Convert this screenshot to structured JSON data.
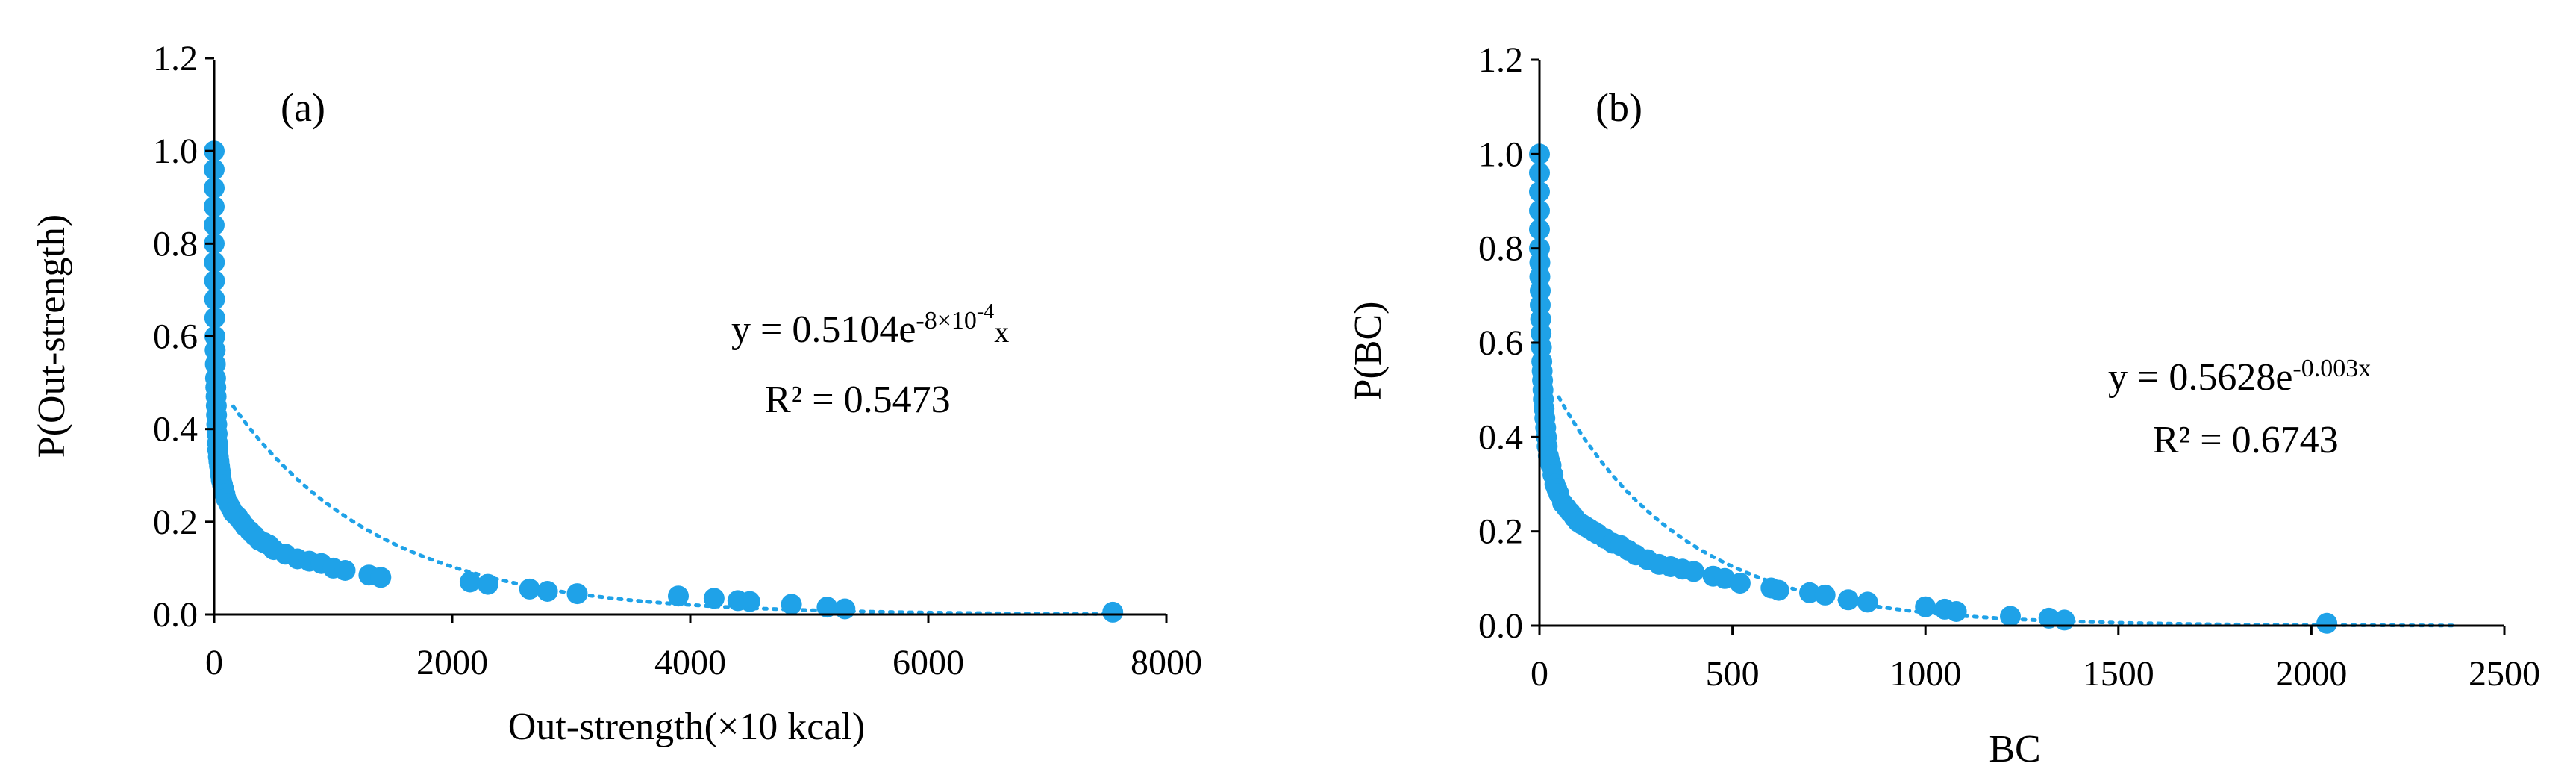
{
  "chart_data": [
    {
      "type": "scatter",
      "panel_label": "(a)",
      "xlabel": "Out-strength(×10 kcal)",
      "ylabel": "P(Out-strength)",
      "xlim": [
        0,
        8000
      ],
      "ylim": [
        0,
        1.2
      ],
      "x_ticks": [
        0,
        2000,
        4000,
        6000,
        8000
      ],
      "y_ticks": [
        0.0,
        0.2,
        0.4,
        0.6,
        0.8,
        1.0,
        1.2
      ],
      "grid": false,
      "point_color": "#1FA2E8",
      "trendline": {
        "type": "exponential",
        "a": 0.5104,
        "b": -0.0008,
        "style": "dotted"
      },
      "equation": {
        "prefix": "y = 0.5104e",
        "exponent": "-8×10",
        "exp_power": "-4",
        "suffix": "x"
      },
      "r2": "R² = 0.5473",
      "points": {
        "x": [
          0,
          0,
          0,
          0,
          0,
          0,
          2,
          3,
          4,
          5,
          6,
          8,
          10,
          12,
          14,
          16,
          18,
          20,
          22,
          25,
          28,
          30,
          35,
          40,
          45,
          50,
          55,
          60,
          70,
          80,
          90,
          100,
          120,
          140,
          160,
          180,
          200,
          230,
          260,
          300,
          340,
          380,
          420,
          460,
          500,
          600,
          700,
          800,
          900,
          1000,
          1100,
          1300,
          1400,
          2150,
          2300,
          2650,
          2800,
          3050,
          3900,
          4200,
          4400,
          4500,
          4850,
          5150,
          5300,
          7550
        ],
        "y": [
          1.0,
          0.96,
          0.92,
          0.88,
          0.84,
          0.8,
          0.76,
          0.72,
          0.68,
          0.64,
          0.6,
          0.57,
          0.54,
          0.51,
          0.49,
          0.47,
          0.45,
          0.43,
          0.41,
          0.39,
          0.37,
          0.355,
          0.34,
          0.33,
          0.32,
          0.31,
          0.3,
          0.29,
          0.28,
          0.27,
          0.26,
          0.25,
          0.24,
          0.23,
          0.22,
          0.215,
          0.21,
          0.2,
          0.19,
          0.18,
          0.17,
          0.16,
          0.155,
          0.15,
          0.14,
          0.13,
          0.12,
          0.115,
          0.11,
          0.1,
          0.095,
          0.085,
          0.08,
          0.07,
          0.065,
          0.055,
          0.05,
          0.045,
          0.04,
          0.035,
          0.03,
          0.028,
          0.022,
          0.016,
          0.012,
          0.005
        ]
      }
    },
    {
      "type": "scatter",
      "panel_label": "(b)",
      "xlabel": "BC",
      "ylabel": "P(BC)",
      "xlim": [
        0,
        2500
      ],
      "ylim": [
        0,
        1.2
      ],
      "x_ticks": [
        0,
        500,
        1000,
        1500,
        2000,
        2500
      ],
      "y_ticks": [
        0.0,
        0.2,
        0.4,
        0.6,
        0.8,
        1.0,
        1.2
      ],
      "grid": false,
      "point_color": "#1FA2E8",
      "trendline": {
        "type": "exponential",
        "a": 0.5628,
        "b": -0.003,
        "style": "dotted"
      },
      "equation": {
        "prefix": "y = 0.5628e",
        "exponent": "-0.003x",
        "exp_power": "",
        "suffix": ""
      },
      "r2": "R² = 0.6743",
      "points": {
        "x": [
          0,
          0,
          0,
          0,
          0,
          0,
          1,
          1,
          2,
          2,
          3,
          4,
          5,
          6,
          7,
          8,
          9,
          10,
          12,
          14,
          16,
          18,
          20,
          23,
          26,
          30,
          35,
          40,
          45,
          50,
          60,
          70,
          80,
          90,
          100,
          110,
          120,
          130,
          140,
          150,
          170,
          190,
          210,
          230,
          250,
          280,
          310,
          340,
          370,
          400,
          450,
          480,
          520,
          600,
          620,
          700,
          740,
          800,
          850,
          1000,
          1050,
          1080,
          1220,
          1320,
          1360,
          2040
        ],
        "y": [
          1.0,
          0.96,
          0.92,
          0.88,
          0.84,
          0.8,
          0.77,
          0.74,
          0.71,
          0.68,
          0.65,
          0.62,
          0.59,
          0.56,
          0.54,
          0.52,
          0.5,
          0.48,
          0.46,
          0.44,
          0.42,
          0.4,
          0.38,
          0.36,
          0.35,
          0.34,
          0.32,
          0.3,
          0.29,
          0.28,
          0.26,
          0.25,
          0.24,
          0.23,
          0.22,
          0.215,
          0.21,
          0.205,
          0.2,
          0.195,
          0.185,
          0.175,
          0.17,
          0.16,
          0.15,
          0.14,
          0.13,
          0.125,
          0.12,
          0.115,
          0.105,
          0.1,
          0.09,
          0.08,
          0.075,
          0.07,
          0.065,
          0.055,
          0.05,
          0.04,
          0.035,
          0.03,
          0.02,
          0.016,
          0.012,
          0.005
        ]
      }
    }
  ]
}
